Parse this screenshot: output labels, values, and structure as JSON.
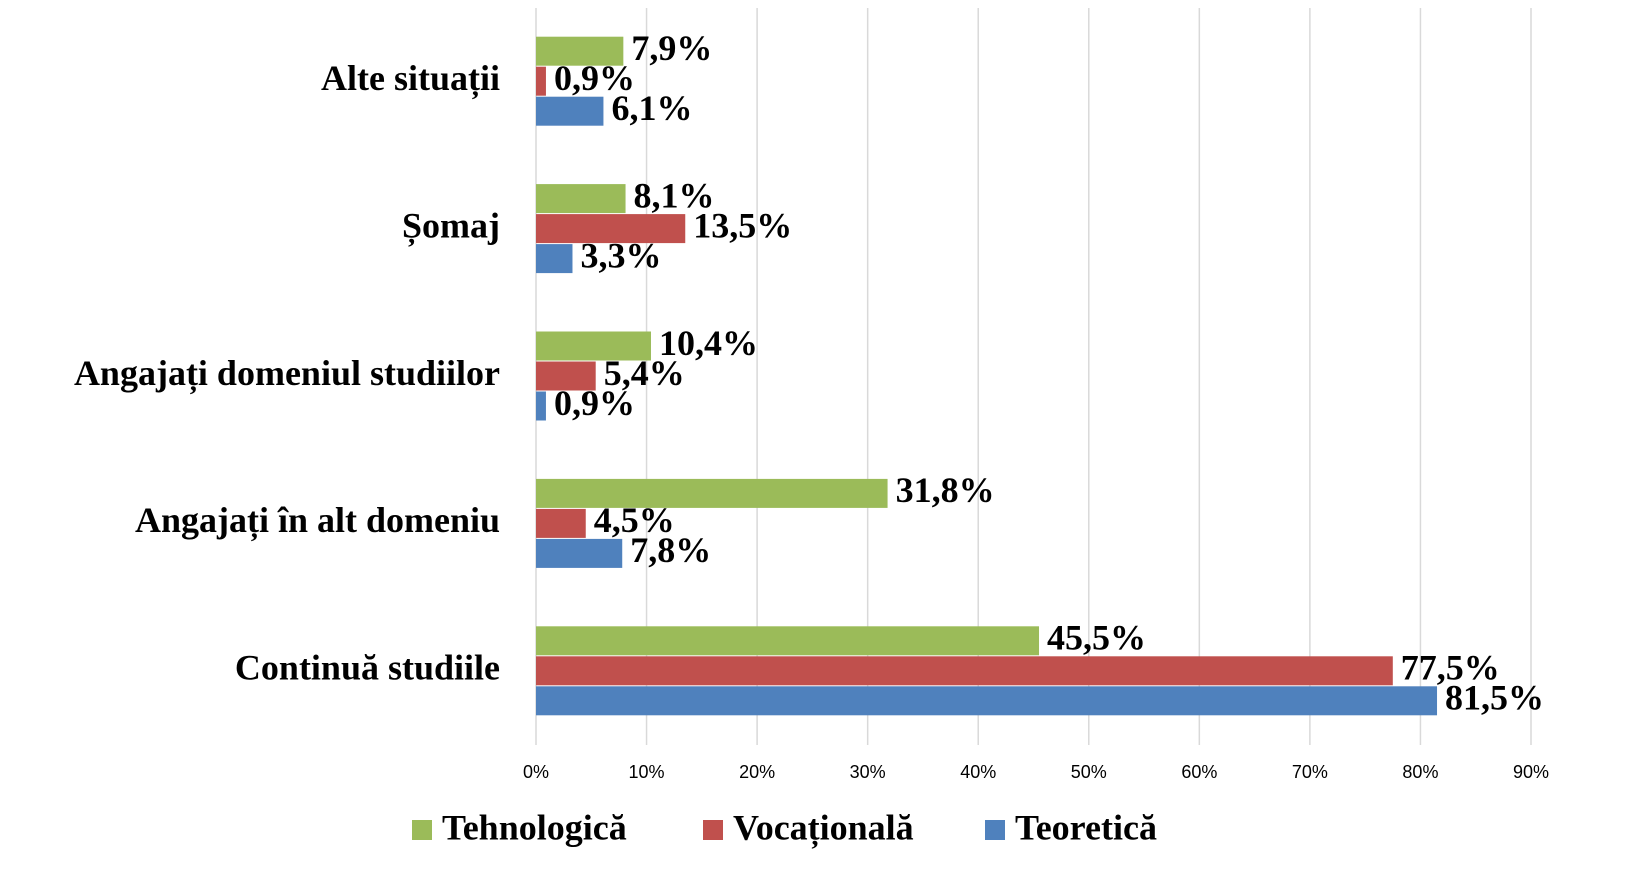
{
  "chart_data": {
    "type": "bar",
    "orientation": "horizontal",
    "categories": [
      "Alte situații",
      "Șomaj",
      "Angajați domeniul studiilor",
      "Angajați în alt domeniu",
      "Continuă studiile"
    ],
    "series": [
      {
        "name": "Tehnologică",
        "color": "#9bbb59",
        "values": [
          7.9,
          8.1,
          10.4,
          31.8,
          45.5
        ],
        "value_labels": [
          "7,9%",
          "8,1%",
          "10,4%",
          "31,8%",
          "45,5%"
        ]
      },
      {
        "name": "Vocațională",
        "color": "#c0504d",
        "values": [
          0.9,
          13.5,
          5.4,
          4.5,
          77.5
        ],
        "value_labels": [
          "0,9%",
          "13,5%",
          "5,4%",
          "4,5%",
          "77,5%"
        ]
      },
      {
        "name": "Teoretică",
        "color": "#4f81bd",
        "values": [
          6.1,
          3.3,
          0.9,
          7.8,
          81.5
        ],
        "value_labels": [
          "6,1%",
          "3,3%",
          "0,9%",
          "7,8%",
          "81,5%"
        ]
      }
    ],
    "xlim": [
      0,
      90
    ],
    "xticks": [
      {
        "value": 0,
        "label": "0%"
      },
      {
        "value": 10,
        "label": "10%"
      },
      {
        "value": 20,
        "label": "20%"
      },
      {
        "value": 30,
        "label": "30%"
      },
      {
        "value": 40,
        "label": "40%"
      },
      {
        "value": 50,
        "label": "50%"
      },
      {
        "value": 60,
        "label": "60%"
      },
      {
        "value": 70,
        "label": "70%"
      },
      {
        "value": 80,
        "label": "80%"
      },
      {
        "value": 90,
        "label": "90%"
      }
    ],
    "grid": true,
    "legend": "bottom"
  }
}
